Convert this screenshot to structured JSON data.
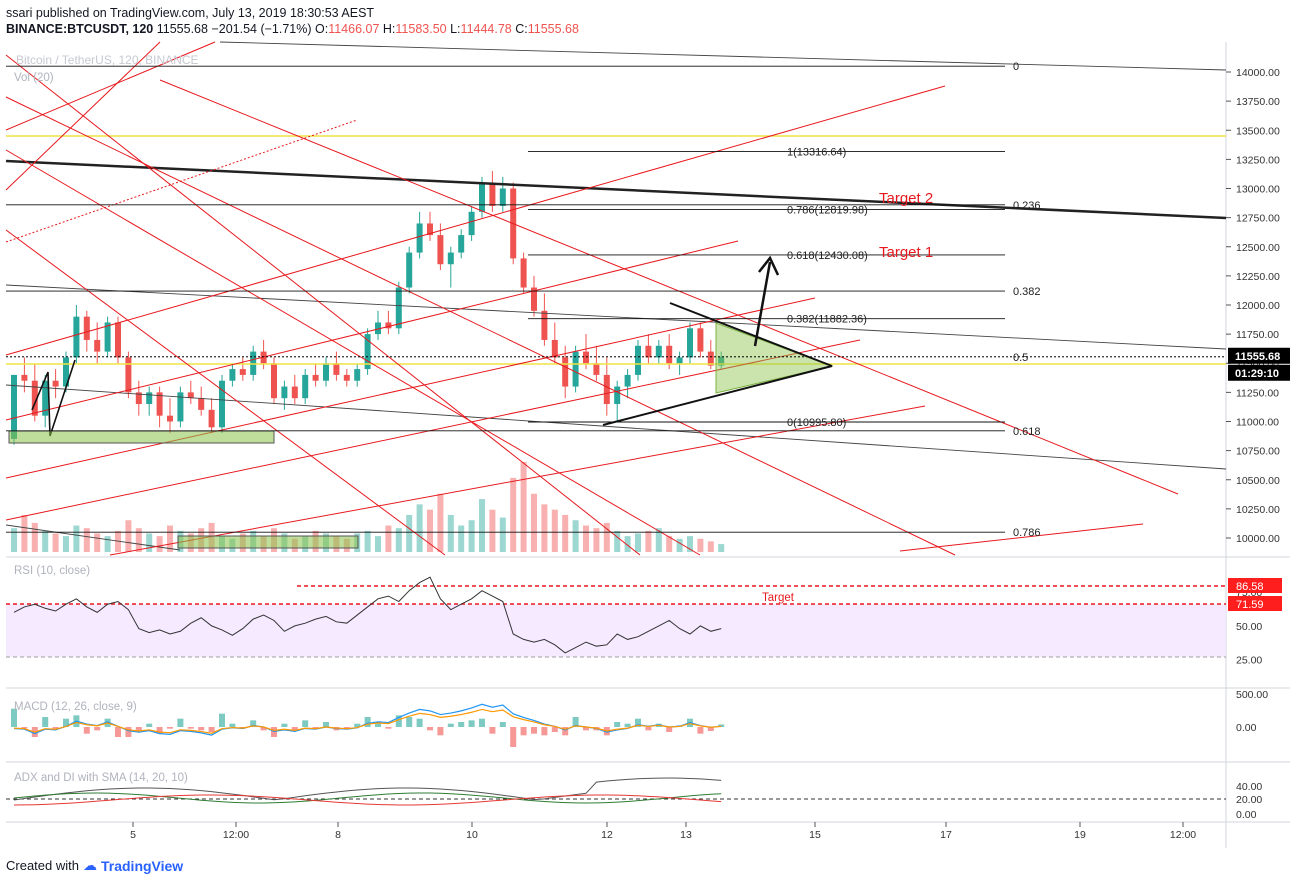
{
  "header": {
    "published": "ssari published on TradingView.com, July 13, 2019 18:30:53 AEST",
    "symbol": "BINANCE:BTCUSDT, 120",
    "last": "11555.68",
    "change": "−201.54 (−1.71%)",
    "o_label": "O:",
    "o": "11466.07",
    "h_label": "H:",
    "h": "11583.50",
    "l_label": "L:",
    "l": "11444.78",
    "c_label": "C:",
    "c": "11555.68",
    "watermark": "Bitcoin / TetherUS, 120, BINANCE",
    "vol_label": "Vol (20)"
  },
  "footer": {
    "created_with": "Created with",
    "brand": "TradingView"
  },
  "colors": {
    "up": "#26a69a",
    "down": "#ef5350",
    "red_lines": "#e8191e",
    "fib": "#000000",
    "yellow": "#f0e442",
    "rsi_fill": "#f3e5ff",
    "macd": "#2196f3",
    "signal": "#ff9800"
  },
  "chart_data": {
    "type": "candlestick",
    "title": "",
    "price_axis": {
      "ticks": [
        "14000.00",
        "13750.00",
        "13500.00",
        "13250.00",
        "13000.00",
        "12750.00",
        "12500.00",
        "12250.00",
        "12000.00",
        "11750.00",
        "11500.00",
        "11250.00",
        "11000.00",
        "10750.00",
        "10500.00",
        "10250.00",
        "10000.00"
      ],
      "ylim": [
        9900,
        14150
      ],
      "last_price_label": "11555.68",
      "countdown_label": "01:29:10"
    },
    "time_axis": {
      "ticks": [
        "5",
        "12:00",
        "8",
        "10",
        "12",
        "13",
        "15",
        "17",
        "19",
        "12:00"
      ]
    },
    "candles": [
      [
        10850,
        11400,
        10800,
        11400
      ],
      [
        11400,
        11550,
        11250,
        11350
      ],
      [
        11350,
        11500,
        11000,
        11050
      ],
      [
        11050,
        11400,
        10950,
        11350
      ],
      [
        11350,
        11450,
        11200,
        11300
      ],
      [
        11300,
        11600,
        11250,
        11550
      ],
      [
        11550,
        12000,
        11500,
        11900
      ],
      [
        11900,
        11950,
        11600,
        11700
      ],
      [
        11700,
        11850,
        11500,
        11600
      ],
      [
        11600,
        11900,
        11550,
        11850
      ],
      [
        11850,
        11900,
        11500,
        11550
      ],
      [
        11550,
        11600,
        11200,
        11250
      ],
      [
        11250,
        11350,
        11050,
        11150
      ],
      [
        11150,
        11300,
        11050,
        11250
      ],
      [
        11250,
        11300,
        10950,
        11050
      ],
      [
        11050,
        11200,
        10900,
        11000
      ],
      [
        11000,
        11300,
        10950,
        11250
      ],
      [
        11250,
        11350,
        11150,
        11200
      ],
      [
        11200,
        11300,
        11050,
        11100
      ],
      [
        11100,
        11200,
        10900,
        10950
      ],
      [
        10950,
        11400,
        10900,
        11350
      ],
      [
        11350,
        11500,
        11300,
        11450
      ],
      [
        11450,
        11550,
        11350,
        11400
      ],
      [
        11400,
        11650,
        11350,
        11600
      ],
      [
        11600,
        11700,
        11450,
        11500
      ],
      [
        11500,
        11550,
        11150,
        11200
      ],
      [
        11200,
        11350,
        11100,
        11300
      ],
      [
        11300,
        11400,
        11150,
        11200
      ],
      [
        11200,
        11450,
        11150,
        11400
      ],
      [
        11400,
        11500,
        11300,
        11350
      ],
      [
        11350,
        11550,
        11300,
        11500
      ],
      [
        11500,
        11600,
        11350,
        11400
      ],
      [
        11400,
        11450,
        11300,
        11350
      ],
      [
        11350,
        11500,
        11300,
        11450
      ],
      [
        11450,
        11800,
        11400,
        11750
      ],
      [
        11750,
        11950,
        11700,
        11850
      ],
      [
        11850,
        11950,
        11750,
        11800
      ],
      [
        11800,
        12200,
        11750,
        12150
      ],
      [
        12150,
        12500,
        12100,
        12450
      ],
      [
        12450,
        12800,
        12400,
        12700
      ],
      [
        12700,
        12800,
        12550,
        12600
      ],
      [
        12600,
        12700,
        12300,
        12350
      ],
      [
        12350,
        12500,
        12150,
        12450
      ],
      [
        12450,
        12650,
        12400,
        12600
      ],
      [
        12600,
        12850,
        12550,
        12800
      ],
      [
        12800,
        13100,
        12750,
        13050
      ],
      [
        13050,
        13150,
        12800,
        12850
      ],
      [
        12850,
        13100,
        12800,
        13000
      ],
      [
        13000,
        13050,
        12350,
        12400
      ],
      [
        12400,
        12450,
        12100,
        12150
      ],
      [
        12150,
        12250,
        11900,
        11950
      ],
      [
        11950,
        12100,
        11650,
        11700
      ],
      [
        11700,
        11850,
        11500,
        11550
      ],
      [
        11550,
        11650,
        11200,
        11300
      ],
      [
        11300,
        11650,
        11250,
        11600
      ],
      [
        11600,
        11750,
        11450,
        11500
      ],
      [
        11500,
        11650,
        11350,
        11400
      ],
      [
        11400,
        11550,
        11050,
        11150
      ],
      [
        11150,
        11350,
        11000,
        11300
      ],
      [
        11300,
        11450,
        11200,
        11400
      ],
      [
        11400,
        11700,
        11350,
        11650
      ],
      [
        11650,
        11750,
        11500,
        11550
      ],
      [
        11550,
        11700,
        11500,
        11650
      ],
      [
        11650,
        11750,
        11450,
        11500
      ],
      [
        11500,
        11600,
        11400,
        11550
      ],
      [
        11550,
        11850,
        11500,
        11800
      ],
      [
        11800,
        11850,
        11550,
        11600
      ],
      [
        11600,
        11700,
        11450,
        11480
      ],
      [
        11480,
        11600,
        11444,
        11556
      ]
    ],
    "fib_levels": [
      {
        "label": "0",
        "price": 14050
      },
      {
        "label": "1(13316.64)",
        "price": 13316.64
      },
      {
        "label": "0.786(12819.98)",
        "price": 12819.98
      },
      {
        "label": "0.236",
        "price": 12860
      },
      {
        "label": "0.618(12430.08)",
        "price": 12430.08
      },
      {
        "label": "0.382",
        "price": 12120
      },
      {
        "label": "0.382(11882.36)",
        "price": 11882.36
      },
      {
        "label": "0.5",
        "price": 11555
      },
      {
        "label": "0(10995.80)",
        "price": 10995.8
      },
      {
        "label": "0.618",
        "price": 10920
      },
      {
        "label": "0.786",
        "price": 10050
      }
    ],
    "annotations": [
      "Target 2",
      "Target 1"
    ],
    "volume": [
      9,
      14,
      11,
      8,
      7,
      6,
      10,
      9,
      7,
      6,
      8,
      12,
      9,
      7,
      6,
      10,
      8,
      7,
      9,
      11,
      6,
      5,
      7,
      8,
      6,
      9,
      7,
      5,
      6,
      8,
      7,
      6,
      5,
      7,
      8,
      6,
      10,
      9,
      14,
      18,
      16,
      22,
      14,
      10,
      12,
      20,
      16,
      13,
      28,
      34,
      22,
      18,
      16,
      14,
      12,
      10,
      9,
      11,
      8,
      6,
      7,
      8,
      9,
      6,
      5,
      6,
      5,
      4,
      3
    ],
    "rsi": {
      "label": "RSI (10, close)",
      "ticks": [
        "75.00",
        "50.00",
        "25.00"
      ],
      "levels": [
        {
          "label": "86.58",
          "value": 86.58
        },
        {
          "label": "71.59",
          "value": 71.59
        }
      ],
      "target_label": "Target",
      "values": [
        60,
        64,
        66,
        63,
        61,
        66,
        70,
        64,
        60,
        66,
        68,
        62,
        48,
        45,
        47,
        44,
        46,
        52,
        56,
        50,
        47,
        43,
        48,
        55,
        58,
        54,
        46,
        50,
        52,
        55,
        57,
        53,
        52,
        58,
        64,
        70,
        72,
        68,
        76,
        82,
        86,
        70,
        62,
        66,
        70,
        76,
        72,
        68,
        44,
        40,
        38,
        40,
        36,
        30,
        34,
        38,
        35,
        36,
        44,
        40,
        42,
        46,
        50,
        54,
        48,
        44,
        50,
        46,
        48
      ]
    },
    "macd": {
      "label": "MACD (12, 26, close, 9)",
      "ticks": [
        "500.00",
        "0.00"
      ]
    },
    "adx": {
      "label": "ADX and DI with SMA (14, 20, 10)",
      "ticks": [
        "40.00",
        "20.00",
        "0.00"
      ]
    }
  }
}
